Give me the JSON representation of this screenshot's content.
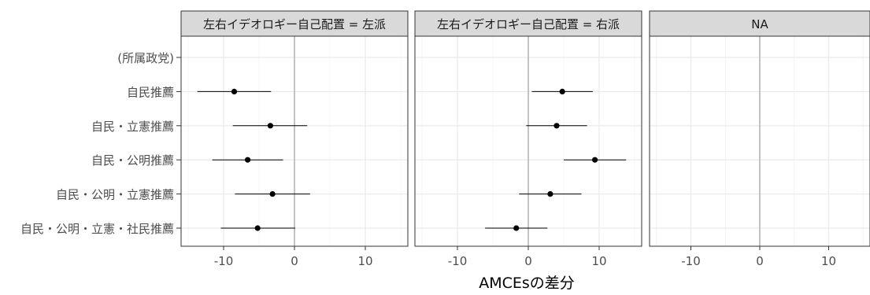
{
  "chart_data": {
    "type": "scatter",
    "subtype": "coefficient-plot-with-error-bars",
    "facet_variable": "左右イデオロギー自己配置",
    "facets": [
      {
        "label": "左右イデオロギー自己配置 = 左派",
        "points": [
          {
            "category": "(所属政党)",
            "estimate": null,
            "low": null,
            "high": null
          },
          {
            "category": "自民推薦",
            "estimate": -8.5,
            "low": -13.7,
            "high": -3.3
          },
          {
            "category": "自民・立憲推薦",
            "estimate": -3.4,
            "low": -8.7,
            "high": 1.8
          },
          {
            "category": "自民・公明推薦",
            "estimate": -6.6,
            "low": -11.6,
            "high": -1.6
          },
          {
            "category": "自民・公明・立憲推薦",
            "estimate": -3.1,
            "low": -8.4,
            "high": 2.2
          },
          {
            "category": "自民・公明・立憲・社民推薦",
            "estimate": -5.2,
            "low": -10.4,
            "high": 0.1
          }
        ]
      },
      {
        "label": "左右イデオロギー自己配置 = 右派",
        "points": [
          {
            "category": "(所属政党)",
            "estimate": null,
            "low": null,
            "high": null
          },
          {
            "category": "自民推薦",
            "estimate": 4.8,
            "low": 0.5,
            "high": 9.1
          },
          {
            "category": "自民・立憲推薦",
            "estimate": 4.0,
            "low": -0.3,
            "high": 8.3
          },
          {
            "category": "自民・公明推薦",
            "estimate": 9.4,
            "low": 5.0,
            "high": 13.8
          },
          {
            "category": "自民・公明・立憲推薦",
            "estimate": 3.1,
            "low": -1.3,
            "high": 7.5
          },
          {
            "category": "自民・公明・立憲・社民推薦",
            "estimate": -1.7,
            "low": -6.1,
            "high": 2.7
          }
        ]
      },
      {
        "label": "NA",
        "points": []
      }
    ],
    "categories": [
      "(所属政党)",
      "自民推薦",
      "自民・立憲推薦",
      "自民・公明推薦",
      "自民・公明・立憲推薦",
      "自民・公明・立憲・社民推薦"
    ],
    "xlim": [
      -16,
      16
    ],
    "x_ticks": [
      -10,
      0,
      10
    ],
    "x_tick_labels": [
      "-10",
      "0",
      "10"
    ],
    "xlabel": "AMCEsの差分",
    "ylabel": "",
    "reference_line": 0,
    "grid": true,
    "legend": "none",
    "colors": {
      "point": "#000000",
      "errorbar": "#000000",
      "strip_fill": "#d9d9d9",
      "strip_border": "#333333",
      "panel_border": "#333333",
      "grid_major": "#ebebeb",
      "grid_minor": "#f4f4f4",
      "reference_line": "#bdbdbd",
      "tick_label": "#4d4d4d",
      "axis_title": "#000000"
    }
  }
}
